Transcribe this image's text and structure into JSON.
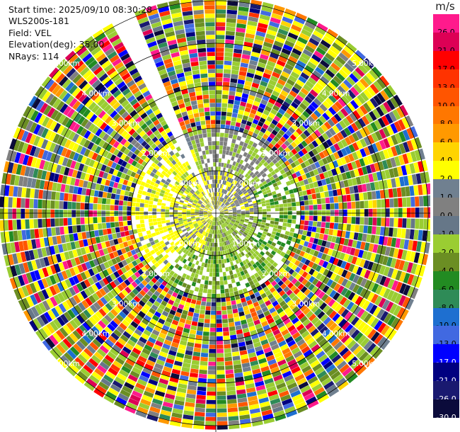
{
  "info": {
    "start_time": "Start time: 2025/09/10 08:30:28",
    "instrument": "WLS200s-181",
    "field": "Field: VEL",
    "elevation": "Elevation(deg): 35.00",
    "nrays": "NRays: 114"
  },
  "colorbar": {
    "unit": "m/s",
    "levels": [
      {
        "label": "26.0",
        "color": "#ff1a8c"
      },
      {
        "label": "21.0",
        "color": "#dd0055"
      },
      {
        "label": "17.0",
        "color": "#ff0000"
      },
      {
        "label": "13.0",
        "color": "#ff3300"
      },
      {
        "label": "10.0",
        "color": "#ff5500"
      },
      {
        "label": "8.0",
        "color": "#ff7700"
      },
      {
        "label": "6.0",
        "color": "#ff9900"
      },
      {
        "label": "4.0",
        "color": "#ffd400"
      },
      {
        "label": "2.0",
        "color": "#ffff00"
      },
      {
        "label": "1.0",
        "color": "#708090"
      },
      {
        "label": "0.0",
        "color": "#808080"
      },
      {
        "label": "-1.0",
        "color": "#667788"
      },
      {
        "label": "-2.0",
        "color": "#9acd32"
      },
      {
        "label": "-4.0",
        "color": "#6b8e23"
      },
      {
        "label": "-6.0",
        "color": "#228b22"
      },
      {
        "label": "-8.0",
        "color": "#2e8b57"
      },
      {
        "label": "-10.0",
        "color": "#1e6fd0"
      },
      {
        "label": "-13.0",
        "color": "#4169e1"
      },
      {
        "label": "-17.0",
        "color": "#0000ff"
      },
      {
        "label": "-21.0",
        "color": "#000080"
      },
      {
        "label": "-26.0",
        "color": "#191970"
      },
      {
        "label": "-30.0",
        "color": "#0b0b3b"
      }
    ]
  },
  "chart_data": {
    "type": "heatmap",
    "title": "",
    "projection": "polar",
    "range_rings_km": [
      "1.00km",
      "2.00km",
      "3.00km",
      "4.00km",
      "5.00km"
    ],
    "rings": [
      1,
      2,
      3,
      4,
      5
    ],
    "max_range_km": 5.1,
    "n_rays": 114,
    "elevation_deg": 35.0,
    "field": "VEL",
    "unit": "m/s",
    "missing_sector_deg": [
      330,
      338
    ],
    "vmin": -30.0,
    "vmax": 26.0
  }
}
